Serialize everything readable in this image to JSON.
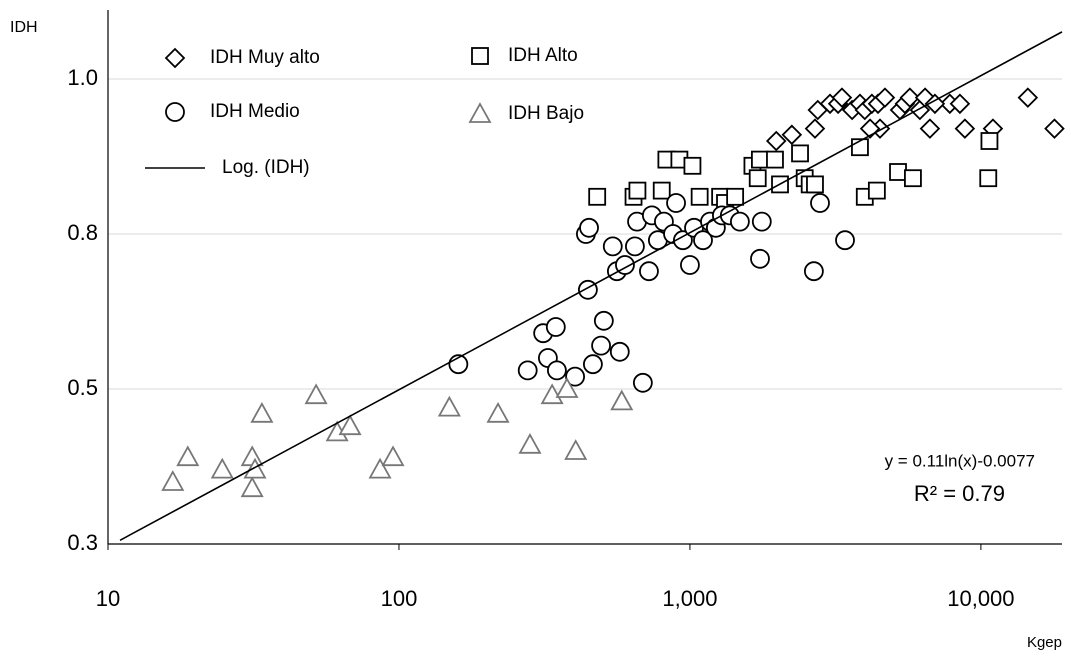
{
  "chart_data": {
    "type": "scatter",
    "y_label": "IDH",
    "x_label": "Kgep",
    "log_x": true,
    "grid": true,
    "xlim": [
      10,
      19000
    ],
    "ylim": [
      0.25,
      1.1
    ],
    "xticks": [
      10,
      100,
      {
        "value": 1000,
        "label": "1,000"
      },
      {
        "value": 10000,
        "label": "10,000"
      }
    ],
    "yticks": [
      {
        "value": 0.25,
        "label": "0.3"
      },
      0.5,
      {
        "value": 0.75,
        "label": "0.8"
      },
      {
        "value": 1,
        "label": "1.0"
      }
    ],
    "annotations": [
      "y = 0.11ln(x)-0.0077",
      "R² = 0.79"
    ],
    "series": [
      {
        "name": "IDH Muy alto",
        "marker": "diamond",
        "color": "#000000",
        "x": [
          1980,
          2240,
          2690,
          2750,
          3030,
          3230,
          3330,
          3610,
          3840,
          3990,
          4220,
          4430,
          4680,
          4500,
          5270,
          5480,
          5700,
          6170,
          6430,
          6680,
          7820,
          8470,
          8810,
          6950,
          14500,
          17900,
          11000,
          4160
        ],
        "values": [
          0.9,
          0.91,
          0.92,
          0.95,
          0.96,
          0.96,
          0.97,
          0.95,
          0.96,
          0.95,
          0.96,
          0.96,
          0.97,
          0.92,
          0.95,
          0.96,
          0.97,
          0.95,
          0.97,
          0.92,
          0.96,
          0.96,
          0.92,
          0.96,
          0.97,
          0.92,
          0.92,
          0.92
        ]
      },
      {
        "name": "IDH Alto",
        "marker": "square",
        "color": "#000000",
        "x": [
          480,
          640,
          660,
          800,
          830,
          920,
          1020,
          1080,
          1270,
          1320,
          1430,
          1640,
          1710,
          1740,
          1960,
          2040,
          2390,
          2480,
          2580,
          2690,
          3840,
          3990,
          4390,
          5190,
          5840,
          10700,
          10600
        ],
        "values": [
          0.81,
          0.81,
          0.82,
          0.82,
          0.87,
          0.87,
          0.86,
          0.81,
          0.81,
          0.8,
          0.81,
          0.86,
          0.84,
          0.87,
          0.87,
          0.83,
          0.88,
          0.84,
          0.83,
          0.83,
          0.89,
          0.81,
          0.82,
          0.85,
          0.84,
          0.9,
          0.84
        ]
      },
      {
        "name": "IDH Medio",
        "marker": "circle",
        "color": "#000000",
        "x": [
          160,
          277,
          313,
          346,
          325,
          349,
          403,
          464,
          495,
          506,
          574,
          689,
          439,
          450,
          446,
          543,
          561,
          598,
          647,
          658,
          723,
          740,
          776,
          814,
          875,
          896,
          946,
          1000,
          1033,
          1109,
          1172,
          1228,
          1288,
          1371,
          1485,
          1766,
          1741,
          2667,
          2799,
          3412
        ],
        "values": [
          0.54,
          0.53,
          0.59,
          0.6,
          0.55,
          0.53,
          0.52,
          0.54,
          0.57,
          0.61,
          0.56,
          0.51,
          0.75,
          0.76,
          0.66,
          0.73,
          0.69,
          0.7,
          0.73,
          0.77,
          0.69,
          0.78,
          0.74,
          0.77,
          0.75,
          0.8,
          0.74,
          0.7,
          0.76,
          0.74,
          0.77,
          0.76,
          0.78,
          0.78,
          0.77,
          0.77,
          0.71,
          0.69,
          0.8,
          0.74
        ]
      },
      {
        "name": "IDH Bajo",
        "marker": "triangle",
        "color": "#777777",
        "x": [
          16.7,
          18.8,
          24.7,
          31.3,
          31.3,
          32,
          33.8,
          51.9,
          61.3,
          67.9,
          86.1,
          95.4,
          149,
          219,
          282,
          336,
          378,
          405,
          583
        ],
        "values": [
          0.35,
          0.39,
          0.37,
          0.39,
          0.34,
          0.37,
          0.46,
          0.49,
          0.43,
          0.44,
          0.37,
          0.39,
          0.47,
          0.46,
          0.41,
          0.49,
          0.5,
          0.4,
          0.48
        ]
      },
      {
        "name": "Log. (IDH)",
        "type": "line",
        "color": "#000000",
        "x": [
          11,
          19000
        ],
        "values": [
          0.256,
          1.076
        ]
      }
    ]
  }
}
